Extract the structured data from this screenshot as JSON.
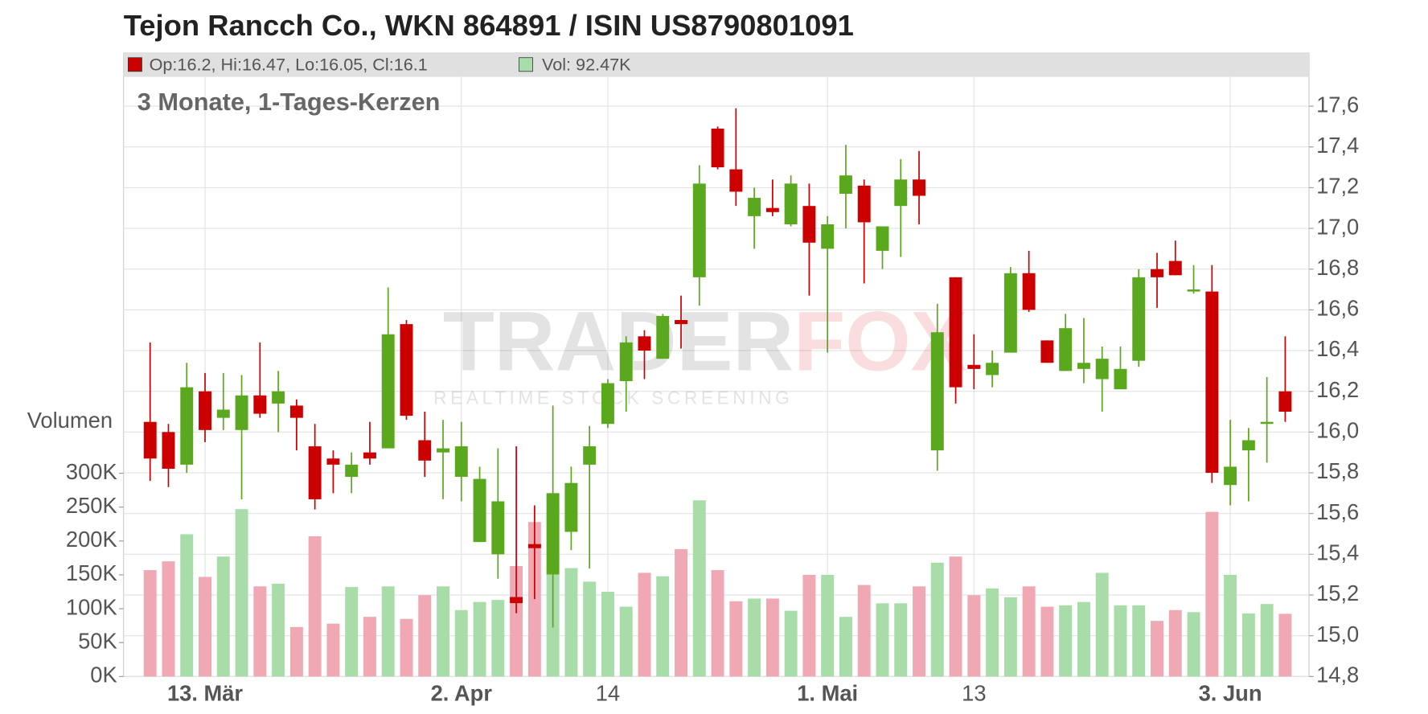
{
  "chart_data": {
    "type": "candlestick",
    "title": "Tejon Rancch Co., WKN 864891 / ISIN US8790801091",
    "subtitle": "3 Monate, 1-Tages-Kerzen",
    "header": {
      "ohlc_label": "Op:16.2, Hi:16.47, Lo:16.05, Cl:16.1",
      "volume_label": "Vol: 92.47K"
    },
    "volume_axis_label": "Volumen",
    "watermark": {
      "brand": [
        "TRADER",
        "FOX"
      ],
      "tagline": "REALTIME STOCK SCREENING"
    },
    "up_color": "#5aa81e",
    "down_color": "#cc0000",
    "volume_up_color": "#a8dca8",
    "volume_down_color": "#f0a8b4",
    "categories": [
      null,
      null,
      null,
      "13. Mär",
      null,
      null,
      null,
      null,
      null,
      null,
      null,
      null,
      null,
      null,
      null,
      null,
      null,
      "2. Apr",
      null,
      null,
      null,
      null,
      null,
      null,
      null,
      "14",
      null,
      null,
      null,
      null,
      null,
      null,
      null,
      null,
      null,
      null,
      null,
      "1. Mai",
      null,
      null,
      null,
      null,
      null,
      null,
      null,
      "13",
      null,
      null,
      null,
      null,
      null,
      null,
      null,
      null,
      null,
      null,
      null,
      null,
      null,
      "3. Jun",
      null,
      null,
      null
    ],
    "open": [
      16.05,
      16.0,
      15.84,
      16.2,
      16.07,
      16.01,
      16.18,
      16.14,
      16.13,
      15.93,
      15.87,
      15.78,
      15.9,
      15.92,
      16.53,
      15.96,
      15.9,
      15.78,
      15.46,
      15.4,
      15.19,
      15.45,
      15.3,
      15.51,
      15.84,
      16.04,
      16.25,
      16.47,
      16.36,
      16.55,
      16.76,
      17.49,
      17.29,
      17.06,
      17.1,
      17.02,
      17.11,
      16.9,
      17.17,
      17.21,
      16.89,
      17.11,
      17.24,
      15.91,
      16.76,
      16.33,
      16.28,
      16.39,
      16.78,
      16.45,
      16.3,
      16.31,
      16.26,
      16.21,
      16.35,
      16.8,
      16.84,
      16.69,
      16.69,
      15.74,
      15.91,
      16.04,
      16.2
    ],
    "high": [
      16.44,
      16.04,
      16.34,
      16.29,
      16.29,
      16.28,
      16.44,
      16.3,
      16.16,
      16.04,
      15.91,
      15.9,
      16.05,
      16.71,
      16.55,
      16.1,
      16.06,
      16.05,
      15.83,
      15.92,
      15.93,
      15.64,
      16.13,
      15.83,
      16.03,
      16.26,
      16.47,
      16.5,
      16.58,
      16.67,
      17.31,
      17.5,
      17.59,
      17.2,
      17.24,
      17.26,
      17.22,
      17.06,
      17.41,
      17.24,
      17.01,
      17.34,
      17.38,
      16.63,
      16.76,
      16.48,
      16.4,
      16.81,
      16.89,
      16.45,
      16.58,
      16.56,
      16.42,
      16.42,
      16.8,
      16.88,
      16.94,
      16.82,
      16.82,
      16.06,
      16.02,
      16.27,
      16.47
    ],
    "low": [
      15.76,
      15.73,
      15.8,
      15.95,
      16.01,
      15.67,
      16.07,
      16.0,
      15.91,
      15.62,
      15.7,
      15.7,
      15.84,
      15.92,
      16.06,
      15.78,
      15.67,
      15.66,
      15.46,
      15.28,
      15.11,
      15.18,
      15.04,
      15.42,
      15.33,
      16.02,
      16.1,
      16.26,
      16.36,
      16.41,
      16.62,
      17.29,
      17.11,
      16.9,
      17.06,
      17.01,
      16.67,
      16.39,
      17.0,
      16.73,
      16.8,
      16.86,
      17.02,
      15.81,
      16.14,
      16.21,
      16.22,
      16.39,
      16.59,
      16.34,
      16.3,
      16.24,
      16.1,
      16.21,
      16.32,
      16.61,
      16.77,
      16.68,
      15.75,
      15.64,
      15.66,
      15.85,
      16.05
    ],
    "close": [
      15.87,
      15.82,
      16.22,
      16.01,
      16.11,
      16.18,
      16.09,
      16.2,
      16.07,
      15.67,
      15.84,
      15.84,
      15.87,
      16.48,
      16.08,
      15.86,
      15.92,
      15.93,
      15.77,
      15.66,
      15.16,
      15.43,
      15.7,
      15.75,
      15.93,
      16.24,
      16.44,
      16.4,
      16.57,
      16.53,
      17.22,
      17.3,
      17.18,
      17.15,
      17.08,
      17.22,
      16.93,
      17.02,
      17.26,
      17.03,
      17.01,
      17.24,
      17.16,
      16.49,
      16.22,
      16.31,
      16.34,
      16.78,
      16.6,
      16.34,
      16.51,
      16.34,
      16.36,
      16.31,
      16.76,
      16.76,
      16.77,
      16.7,
      15.8,
      15.83,
      15.96,
      16.05,
      16.1
    ],
    "volume": [
      157000,
      170000,
      210000,
      147000,
      177000,
      247000,
      133000,
      137000,
      73000,
      207000,
      78000,
      132000,
      88000,
      133000,
      85000,
      120000,
      133000,
      98000,
      110000,
      113000,
      163000,
      228000,
      150000,
      160000,
      140000,
      125000,
      103000,
      153000,
      148000,
      188000,
      260000,
      157000,
      111000,
      115000,
      115000,
      97000,
      150000,
      150000,
      88000,
      135000,
      108000,
      108000,
      133000,
      168000,
      177000,
      120000,
      130000,
      117000,
      133000,
      103000,
      105000,
      110000,
      153000,
      105000,
      105000,
      82000,
      98000,
      95000,
      243000,
      150000,
      93000,
      107000,
      92470
    ],
    "ylim": [
      14.8,
      17.6
    ],
    "yticks": [
      {
        "value": 14.8,
        "label": "14,8"
      },
      {
        "value": 15.0,
        "label": "15,0"
      },
      {
        "value": 15.2,
        "label": "15,2"
      },
      {
        "value": 15.4,
        "label": "15,4"
      },
      {
        "value": 15.6,
        "label": "15,6"
      },
      {
        "value": 15.8,
        "label": "15,8"
      },
      {
        "value": 16.0,
        "label": "16,0"
      },
      {
        "value": 16.2,
        "label": "16,2"
      },
      {
        "value": 16.4,
        "label": "16,4"
      },
      {
        "value": 16.6,
        "label": "16,6"
      },
      {
        "value": 16.8,
        "label": "16,8"
      },
      {
        "value": 17.0,
        "label": "17,0"
      },
      {
        "value": 17.2,
        "label": "17,2"
      },
      {
        "value": 17.4,
        "label": "17,4"
      },
      {
        "value": 17.6,
        "label": "17,6"
      }
    ],
    "vlim": [
      0,
      300000
    ],
    "vticks": [
      {
        "value": 0,
        "label": "0K"
      },
      {
        "value": 50000,
        "label": "50K"
      },
      {
        "value": 100000,
        "label": "100K"
      },
      {
        "value": 150000,
        "label": "150K"
      },
      {
        "value": 200000,
        "label": "200K"
      },
      {
        "value": 250000,
        "label": "250K"
      },
      {
        "value": 300000,
        "label": "300K"
      }
    ],
    "grid": true
  }
}
